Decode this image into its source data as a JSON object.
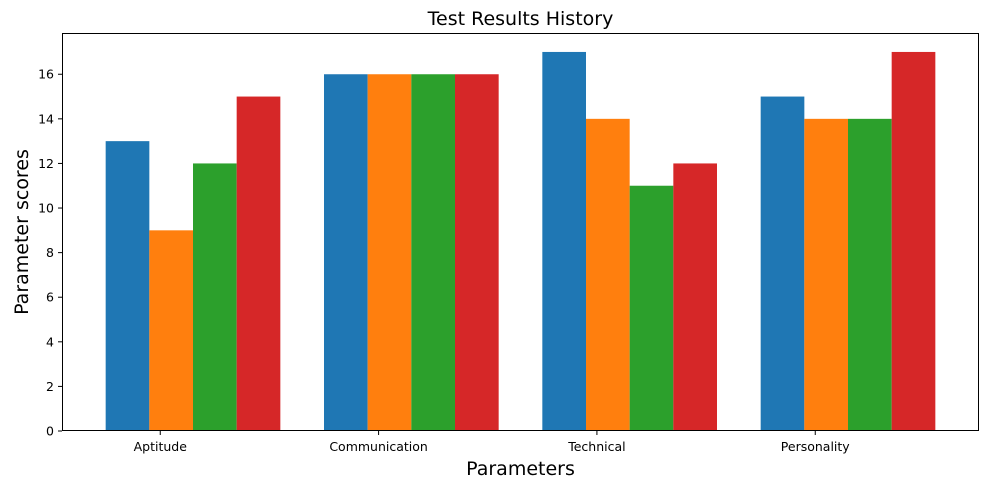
{
  "chart_data": {
    "type": "bar",
    "title": "Test Results History",
    "xlabel": "Parameters",
    "ylabel": "Parameter scores",
    "categories": [
      "Aptitude",
      "Communication",
      "Technical",
      "Personality"
    ],
    "series": [
      {
        "color": "#1f77b4",
        "values": [
          13,
          16,
          17,
          15
        ]
      },
      {
        "color": "#ff7f0e",
        "values": [
          9,
          16,
          14,
          14
        ]
      },
      {
        "color": "#2ca02c",
        "values": [
          12,
          16,
          11,
          14
        ]
      },
      {
        "color": "#d62728",
        "values": [
          15,
          16,
          12,
          17
        ]
      }
    ],
    "ylim": [
      0,
      17.85
    ],
    "yticks": [
      "0",
      "2",
      "4",
      "6",
      "8",
      "10",
      "12",
      "14",
      "16"
    ],
    "grid": false,
    "legend": "none"
  }
}
